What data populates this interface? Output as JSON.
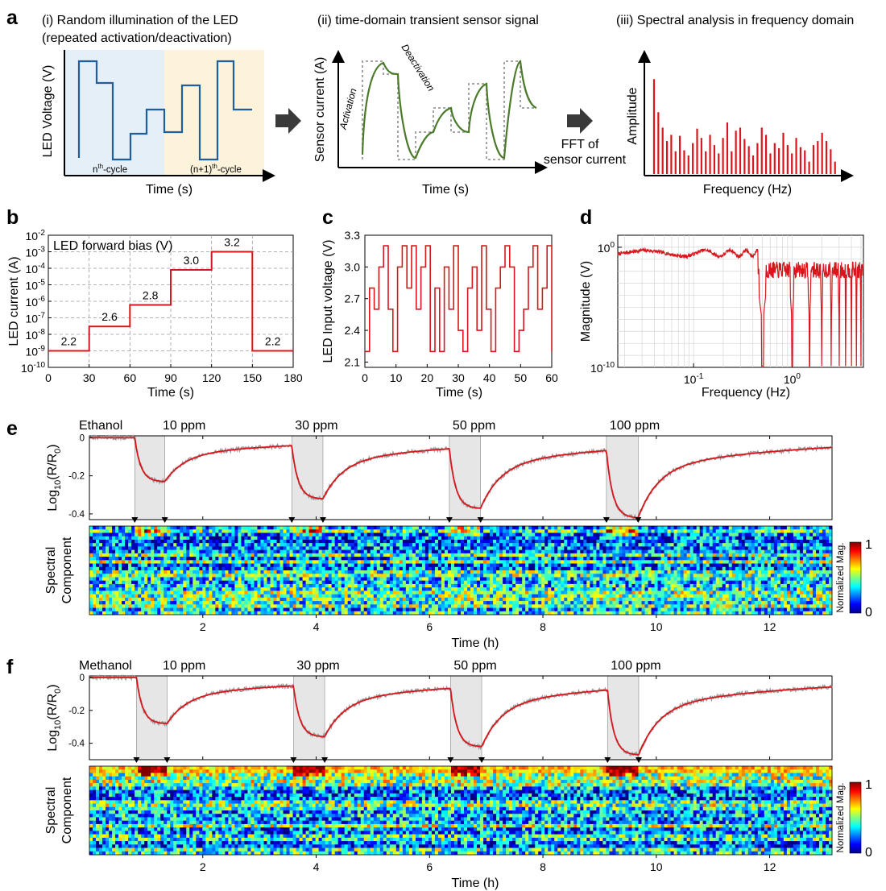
{
  "colors": {
    "red": "#d9161c",
    "blue": "#1f5e9c",
    "green": "#4a7a2a",
    "grey_dot": "#9a9a9a",
    "blue_bg": "#e5eff8",
    "yellow_bg": "#fdf3da",
    "shade": "#e6e6e6"
  },
  "panel_a": {
    "label": "a",
    "sub1_title_l1": "(i) Random illumination of the LED",
    "sub1_title_l2": "(repeated activation/deactivation)",
    "sub1_ylabel": "LED  Voltage (V)",
    "sub1_xlabel": "Time (s)",
    "cycle_n_base": "n",
    "cycle_n_sup": "th",
    "cycle_n_tail": "-cycle",
    "cycle_n1_base": "(n+1)",
    "cycle_n1_sup": "th",
    "cycle_n1_tail": "-cycle",
    "sub2_title": "(ii) time-domain transient sensor signal",
    "sub2_ylabel": "Sensor current (A)",
    "sub2_xlabel": "Time (s)",
    "activation": "Activation",
    "deactivation": "Deactivation",
    "fft_l1": "FFT of",
    "fft_l2": "sensor current",
    "sub3_title": "(iii) Spectral analysis in frequency domain",
    "sub3_ylabel": "Amplitude",
    "sub3_xlabel": "Frequency (Hz)",
    "amplitudes": [
      0.92,
      0.6,
      0.45,
      0.32,
      0.38,
      0.22,
      0.37,
      0.23,
      0.18,
      0.3,
      0.44,
      0.35,
      0.22,
      0.38,
      0.28,
      0.2,
      0.35,
      0.5,
      0.22,
      0.42,
      0.45,
      0.34,
      0.27,
      0.18,
      0.3,
      0.45,
      0.38,
      0.2,
      0.3,
      0.25,
      0.4,
      0.28,
      0.2,
      0.35,
      0.26,
      0.23,
      0.12,
      0.28,
      0.32,
      0.4,
      0.32,
      0.24,
      0.12
    ]
  },
  "chart_data": [
    {
      "panel": "b",
      "type": "line",
      "title": "LED forward bias (V)",
      "xlabel": "Time (s)",
      "ylabel": "LED current (A)",
      "x": [
        0,
        30,
        30,
        60,
        60,
        90,
        90,
        120,
        120,
        150,
        150,
        180
      ],
      "y": [
        1e-09,
        1e-09,
        3e-08,
        3e-08,
        6e-07,
        6e-07,
        8e-05,
        8e-05,
        0.001,
        0.001,
        1e-09,
        1e-09
      ],
      "xlim": [
        0,
        180
      ],
      "ylim": [
        1e-10,
        0.01
      ],
      "yscale": "log",
      "xticks": [
        0,
        30,
        60,
        90,
        120,
        150,
        180
      ],
      "yticks": [
        {
          "base": "10",
          "exp": "-10",
          "value": 1e-10
        },
        {
          "base": "10",
          "exp": "-9",
          "value": 1e-09
        },
        {
          "base": "10",
          "exp": "-8",
          "value": 1e-08
        },
        {
          "base": "10",
          "exp": "-7",
          "value": 1e-07
        },
        {
          "base": "10",
          "exp": "-6",
          "value": 1e-06
        },
        {
          "base": "10",
          "exp": "-5",
          "value": 1e-05
        },
        {
          "base": "10",
          "exp": "-4",
          "value": 0.0001
        },
        {
          "base": "10",
          "exp": "-3",
          "value": 0.001
        },
        {
          "base": "10",
          "exp": "-2",
          "value": 0.01
        }
      ],
      "annotations": [
        {
          "text": "2.2",
          "x": 15,
          "y": 1e-09
        },
        {
          "text": "2.6",
          "x": 45,
          "y": 3e-08
        },
        {
          "text": "2.8",
          "x": 75,
          "y": 6e-07
        },
        {
          "text": "3.0",
          "x": 105,
          "y": 8e-05
        },
        {
          "text": "3.2",
          "x": 135,
          "y": 0.001
        },
        {
          "text": "2.2",
          "x": 165,
          "y": 1e-09
        }
      ]
    },
    {
      "panel": "c",
      "type": "line",
      "xlabel": "Time (s)",
      "ylabel": "LED Input voltage (V)",
      "steps": [
        2.2,
        2.8,
        2.6,
        3.0,
        3.2,
        2.6,
        2.2,
        3.0,
        3.2,
        2.8,
        3.2,
        2.6,
        3.0,
        3.2,
        2.2,
        2.8,
        2.2,
        3.0,
        2.6,
        3.2,
        2.4,
        2.2,
        2.8,
        3.0,
        2.4,
        3.2,
        2.6,
        2.2,
        2.8,
        3.0,
        3.2,
        3.0,
        2.2,
        2.4,
        2.6,
        3.0,
        3.2,
        2.6,
        2.8,
        3.2,
        2.2
      ],
      "xlim": [
        0,
        60
      ],
      "ylim": [
        2.05,
        3.3
      ],
      "xticks": [
        "0",
        "10",
        "20",
        "30",
        "40",
        "50",
        "60"
      ],
      "yticks": [
        "2.1",
        "2.4",
        "2.7",
        "3.0",
        "3.3"
      ]
    },
    {
      "panel": "d",
      "type": "line",
      "xlabel": "Frequency (Hz)",
      "ylabel": "Magnitude (V)",
      "xscale": "log",
      "yscale": "log",
      "xlim": [
        0.017,
        5.3
      ],
      "ylim": [
        1e-10,
        10
      ],
      "xticks": [
        {
          "base": "10",
          "exp": "-1",
          "value": 0.1
        },
        {
          "base": "10",
          "exp": "0",
          "value": 1
        }
      ],
      "yticks": [
        {
          "base": "10",
          "exp": "0",
          "value": 1
        },
        {
          "base": "10",
          "exp": "-10",
          "value": 1e-10
        }
      ],
      "notches_hz": [
        0.5,
        1.0,
        1.5,
        2.0,
        2.5,
        3.0,
        3.5,
        4.0,
        4.5,
        5.0
      ]
    },
    {
      "panel": "e",
      "type": "line",
      "analyte": "Ethanol",
      "ylabel_base": "Log",
      "ylabel_sub": "10",
      "ylabel_mid": "(R/R",
      "ylabel_sub2": "0",
      "ylabel_end": ")",
      "xlabel": "Time (h)",
      "xlim": [
        0,
        13.1
      ],
      "ylim": [
        -0.43,
        0.01
      ],
      "yticks": [
        "0",
        "-0.2",
        "-0.4"
      ],
      "xticks": [
        "2",
        "4",
        "6",
        "8",
        "10",
        "12"
      ],
      "exposures": [
        {
          "label": "10 ppm",
          "start": 0.8,
          "end": 1.33,
          "min": -0.23
        },
        {
          "label": "30 ppm",
          "start": 3.57,
          "end": 4.12,
          "min": -0.32
        },
        {
          "label": "50 ppm",
          "start": 6.35,
          "end": 6.9,
          "min": -0.37
        },
        {
          "label": "100 ppm",
          "start": 9.12,
          "end": 9.68,
          "min": -0.42
        }
      ],
      "heatmap_label_l1": "Spectral",
      "heatmap_label_l2": "Component",
      "colorbar_label": "Normalized Mag.",
      "colorbar_max": "1",
      "colorbar_min": "0"
    },
    {
      "panel": "f",
      "type": "line",
      "analyte": "Methanol",
      "ylabel_base": "Log",
      "ylabel_sub": "10",
      "ylabel_mid": "(R/R",
      "ylabel_sub2": "0",
      "ylabel_end": ")",
      "xlabel": "Time (h)",
      "xlim": [
        0,
        13.1
      ],
      "ylim": [
        -0.5,
        0.01
      ],
      "yticks": [
        "0",
        "-0.2",
        "-0.4"
      ],
      "xticks": [
        "2",
        "4",
        "6",
        "8",
        "10",
        "12"
      ],
      "exposures": [
        {
          "label": "10 ppm",
          "start": 0.83,
          "end": 1.37,
          "min": -0.28
        },
        {
          "label": "30 ppm",
          "start": 3.6,
          "end": 4.15,
          "min": -0.36
        },
        {
          "label": "50 ppm",
          "start": 6.37,
          "end": 6.92,
          "min": -0.42
        },
        {
          "label": "100 ppm",
          "start": 9.14,
          "end": 9.69,
          "min": -0.47
        }
      ],
      "heatmap_label_l1": "Spectral",
      "heatmap_label_l2": "Component",
      "colorbar_label": "Normalized Mag.",
      "colorbar_max": "1",
      "colorbar_min": "0"
    }
  ]
}
